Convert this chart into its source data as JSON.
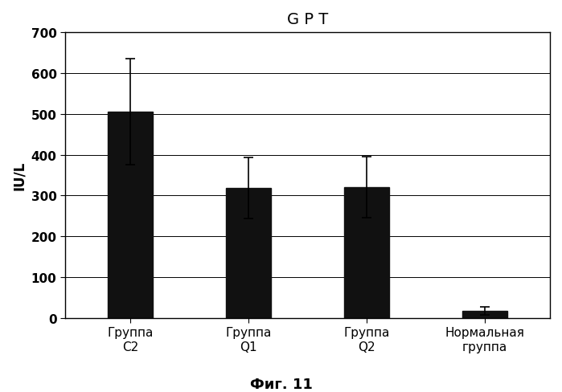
{
  "title": "G P T",
  "ylabel": "IU/L",
  "xlabel_bottom": "Фиг. 11",
  "categories": [
    "Группа\nС2",
    "Группа\nQ1",
    "Группа\nQ2",
    "Нормальная\nгруппа"
  ],
  "values": [
    505,
    318,
    320,
    18
  ],
  "errors": [
    130,
    75,
    75,
    10
  ],
  "ylim": [
    0,
    700
  ],
  "yticks": [
    0,
    100,
    200,
    300,
    400,
    500,
    600,
    700
  ],
  "bar_color": "#111111",
  "bar_width": 0.38,
  "background_color": "#ffffff",
  "title_fontsize": 14,
  "axis_label_fontsize": 12,
  "tick_fontsize": 11,
  "caption_fontsize": 13,
  "figsize": [
    6.99,
    4.89
  ],
  "dpi": 100
}
